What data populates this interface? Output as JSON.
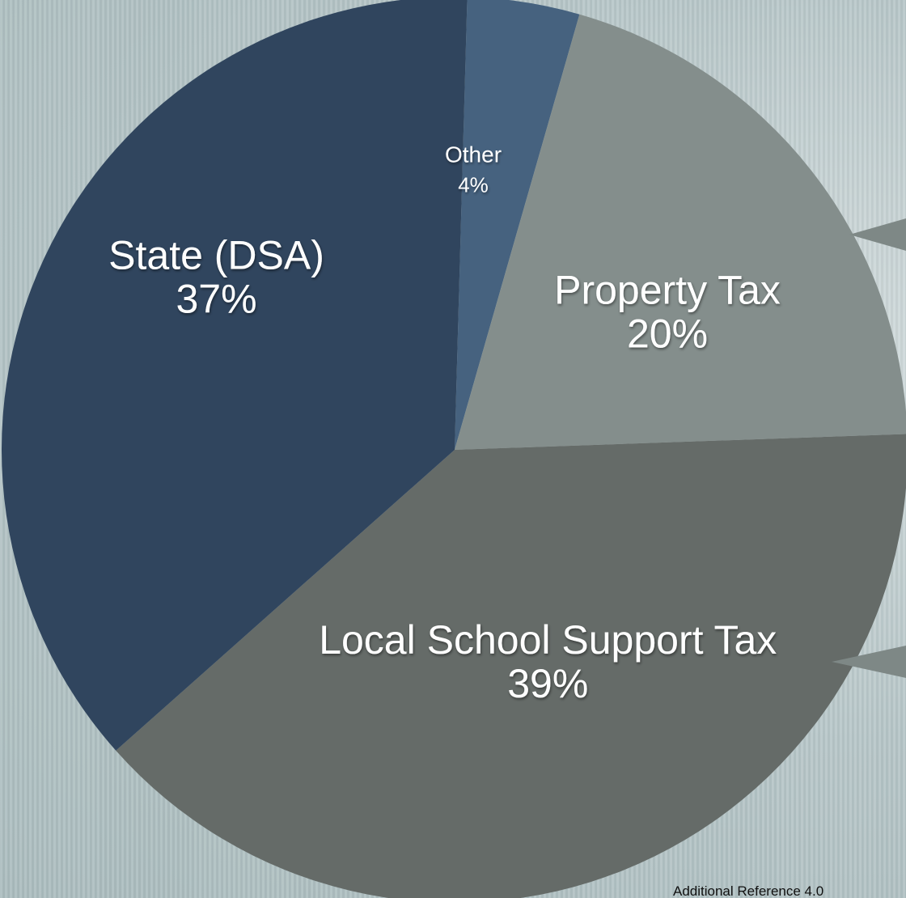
{
  "chart_data": {
    "type": "pie",
    "title": "",
    "slices": [
      {
        "label": "Other",
        "value": 4,
        "value_label": "4%",
        "color": "#46627f"
      },
      {
        "label": "Property Tax",
        "value": 20,
        "value_label": "20%",
        "color": "#848e8c"
      },
      {
        "label": "Local School Support Tax",
        "value": 39,
        "value_label": "39%",
        "color": "#656b68"
      },
      {
        "label": "State (DSA)",
        "value": 37,
        "value_label": "37%",
        "color": "#30455e"
      }
    ],
    "callout_pointers": [
      "Property Tax",
      "Local School Support Tax"
    ],
    "legend": "none"
  },
  "footer": {
    "reference": "Additional Reference 4.0"
  }
}
